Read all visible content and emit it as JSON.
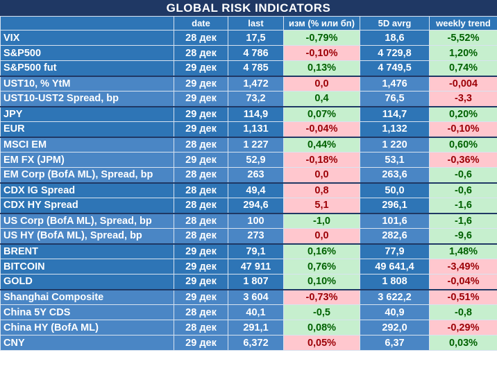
{
  "title": "GLOBAL   RISK   INDICATORS",
  "headers": [
    "",
    "date",
    "last",
    "изм (% или бп)",
    "5D avrg",
    "weekly trend"
  ],
  "rows": [
    {
      "name": "VIX",
      "date": "28 дек",
      "last": "17,5",
      "chg": "-0,79%",
      "chg_dir": "pos",
      "avg": "18,6",
      "trend": "-5,52%",
      "trend_dir": "pos",
      "group": "a",
      "sep": false
    },
    {
      "name": "S&P500",
      "date": "28 дек",
      "last": "4 786",
      "chg": "-0,10%",
      "chg_dir": "neg",
      "avg": "4 729,8",
      "trend": "1,20%",
      "trend_dir": "pos",
      "group": "a",
      "sep": false
    },
    {
      "name": "S&P500 fut",
      "date": "29 дек",
      "last": "4 785",
      "chg": "0,13%",
      "chg_dir": "pos",
      "avg": "4 749,5",
      "trend": "0,74%",
      "trend_dir": "pos",
      "group": "a",
      "sep": false
    },
    {
      "name": "UST10, % YtM",
      "date": "29 дек",
      "last": "1,472",
      "chg": "0,0",
      "chg_dir": "neg",
      "avg": "1,476",
      "trend": "-0,004",
      "trend_dir": "neg",
      "group": "b",
      "sep": true
    },
    {
      "name": "UST10-UST2 Spread, bp",
      "date": "29 дек",
      "last": "73,2",
      "chg": "0,4",
      "chg_dir": "pos",
      "avg": "76,5",
      "trend": "-3,3",
      "trend_dir": "neg",
      "group": "b",
      "sep": false
    },
    {
      "name": "JPY",
      "date": "29 дек",
      "last": "114,9",
      "chg": "0,07%",
      "chg_dir": "pos",
      "avg": "114,7",
      "trend": "0,20%",
      "trend_dir": "pos",
      "group": "a",
      "sep": true
    },
    {
      "name": "EUR",
      "date": "29 дек",
      "last": "1,131",
      "chg": "-0,04%",
      "chg_dir": "neg",
      "avg": "1,132",
      "trend": "-0,10%",
      "trend_dir": "neg",
      "group": "a",
      "sep": false
    },
    {
      "name": "MSCI EM",
      "date": "28 дек",
      "last": "1 227",
      "chg": "0,44%",
      "chg_dir": "pos",
      "avg": "1 220",
      "trend": "0,60%",
      "trend_dir": "pos",
      "group": "b",
      "sep": true
    },
    {
      "name": "EM FX (JPM)",
      "date": "29 дек",
      "last": "52,9",
      "chg": "-0,18%",
      "chg_dir": "neg",
      "avg": "53,1",
      "trend": "-0,36%",
      "trend_dir": "neg",
      "group": "b",
      "sep": false
    },
    {
      "name": "EM Corp (BofA ML), Spread, bp",
      "date": "28 дек",
      "last": "263",
      "chg": "0,0",
      "chg_dir": "neg",
      "avg": "263,6",
      "trend": "-0,6",
      "trend_dir": "pos",
      "group": "b",
      "sep": false
    },
    {
      "name": "CDX IG Spread",
      "date": "28 дек",
      "last": "49,4",
      "chg": "0,8",
      "chg_dir": "neg",
      "avg": "50,0",
      "trend": "-0,6",
      "trend_dir": "pos",
      "group": "a",
      "sep": true
    },
    {
      "name": "CDX HY Spread",
      "date": "28 дек",
      "last": "294,6",
      "chg": "5,1",
      "chg_dir": "neg",
      "avg": "296,1",
      "trend": "-1,6",
      "trend_dir": "pos",
      "group": "a",
      "sep": false
    },
    {
      "name": "US Corp (BofA ML), Spread, bp",
      "date": "28 дек",
      "last": "100",
      "chg": "-1,0",
      "chg_dir": "pos",
      "avg": "101,6",
      "trend": "-1,6",
      "trend_dir": "pos",
      "group": "b",
      "sep": true
    },
    {
      "name": "US HY (BofA ML), Spread, bp",
      "date": "28 дек",
      "last": "273",
      "chg": "0,0",
      "chg_dir": "neg",
      "avg": "282,6",
      "trend": "-9,6",
      "trend_dir": "pos",
      "group": "b",
      "sep": false
    },
    {
      "name": "BRENT",
      "date": "29 дек",
      "last": "79,1",
      "chg": "0,16%",
      "chg_dir": "pos",
      "avg": "77,9",
      "trend": "1,48%",
      "trend_dir": "pos",
      "group": "a",
      "sep": true
    },
    {
      "name": "BITCOIN",
      "date": "29 дек",
      "last": "47 911",
      "chg": "0,76%",
      "chg_dir": "pos",
      "avg": "49 641,4",
      "trend": "-3,49%",
      "trend_dir": "neg",
      "group": "a",
      "sep": false
    },
    {
      "name": "GOLD",
      "date": "29 дек",
      "last": "1 807",
      "chg": "0,10%",
      "chg_dir": "pos",
      "avg": "1 808",
      "trend": "-0,04%",
      "trend_dir": "neg",
      "group": "a",
      "sep": false
    },
    {
      "name": "Shanghai Composite",
      "date": "29 дек",
      "last": "3 604",
      "chg": "-0,73%",
      "chg_dir": "neg",
      "avg": "3 622,2",
      "trend": "-0,51%",
      "trend_dir": "neg",
      "group": "b",
      "sep": true
    },
    {
      "name": "China 5Y CDS",
      "date": "28 дек",
      "last": "40,1",
      "chg": "-0,5",
      "chg_dir": "pos",
      "avg": "40,9",
      "trend": "-0,8",
      "trend_dir": "pos",
      "group": "b",
      "sep": false
    },
    {
      "name": "China HY (BofA ML)",
      "date": "28 дек",
      "last": "291,1",
      "chg": "0,08%",
      "chg_dir": "pos",
      "avg": "292,0",
      "trend": "-0,29%",
      "trend_dir": "neg",
      "group": "b",
      "sep": false
    },
    {
      "name": "CNY",
      "date": "29 дек",
      "last": "6,372",
      "chg": "0,05%",
      "chg_dir": "neg",
      "avg": "6,37",
      "trend": "0,03%",
      "trend_dir": "pos",
      "group": "b",
      "sep": false
    }
  ]
}
